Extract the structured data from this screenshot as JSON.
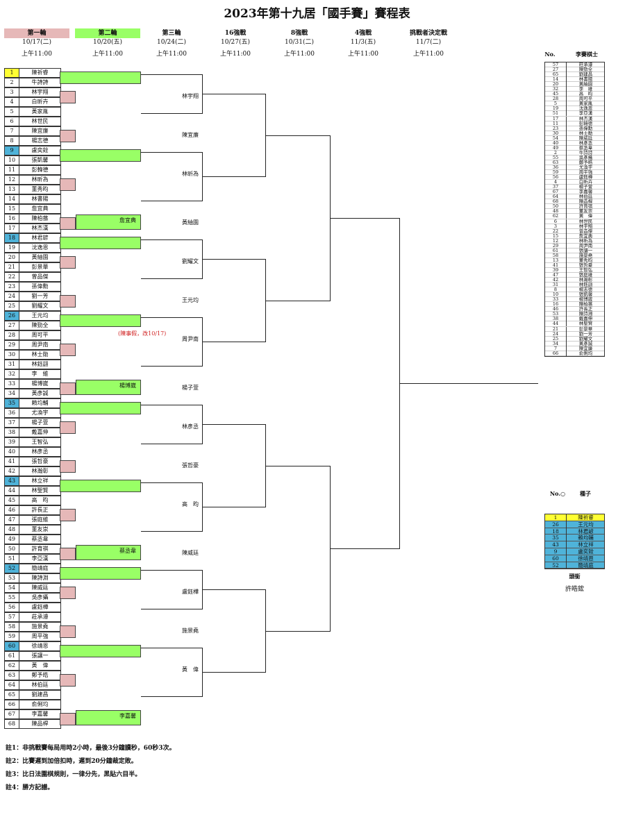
{
  "title": "2023年第十九居「國手賽」賽程表",
  "rounds": [
    {
      "name": "第一輪",
      "date": "10/17(二)",
      "time": "上午11:00",
      "bg": "#e6b8b8"
    },
    {
      "name": "第二輪",
      "date": "10/20(五)",
      "time": "上午11:00",
      "bg": "#99ff66"
    },
    {
      "name": "第三輪",
      "date": "10/24(二)",
      "time": "上午11:00",
      "bg": ""
    },
    {
      "name": "16強戰",
      "date": "10/27(五)",
      "time": "上午11:00",
      "bg": ""
    },
    {
      "name": "8強戰",
      "date": "10/31(二)",
      "time": "上午11:00",
      "bg": ""
    },
    {
      "name": "4強戰",
      "date": "11/3(五)",
      "time": "上午11:00",
      "bg": ""
    },
    {
      "name": "挑戰者決定戰",
      "date": "11/7(二)",
      "time": "上午11:00",
      "bg": ""
    }
  ],
  "players": [
    {
      "no": "1",
      "name": "陳祈睿",
      "seed": "yellow"
    },
    {
      "no": "2",
      "name": "牛詩詩"
    },
    {
      "no": "3",
      "name": "林宇翔"
    },
    {
      "no": "4",
      "name": "白昕卉"
    },
    {
      "no": "5",
      "name": "黃家胤"
    },
    {
      "no": "6",
      "name": "林世民"
    },
    {
      "no": "7",
      "name": "陳宜廉"
    },
    {
      "no": "8",
      "name": "楊志德"
    },
    {
      "no": "9",
      "name": "盧奕銓",
      "seed": "blue"
    },
    {
      "no": "10",
      "name": "張凱馨"
    },
    {
      "no": "11",
      "name": "彭韓德"
    },
    {
      "no": "12",
      "name": "林昕為"
    },
    {
      "no": "13",
      "name": "董秀昀"
    },
    {
      "no": "14",
      "name": "林書陽"
    },
    {
      "no": "15",
      "name": "詹宜典"
    },
    {
      "no": "16",
      "name": "陳柏蓀"
    },
    {
      "no": "17",
      "name": "林杰漢"
    },
    {
      "no": "18",
      "name": "林君諺",
      "seed": "blue"
    },
    {
      "no": "19",
      "name": "沈逸恩"
    },
    {
      "no": "20",
      "name": "黃紬園"
    },
    {
      "no": "21",
      "name": "彭景華"
    },
    {
      "no": "22",
      "name": "曾品傑"
    },
    {
      "no": "23",
      "name": "孫偉勳"
    },
    {
      "no": "24",
      "name": "劉一芳"
    },
    {
      "no": "25",
      "name": "劉耀文"
    },
    {
      "no": "26",
      "name": "王元均",
      "seed": "blue"
    },
    {
      "no": "27",
      "name": "陳勁全"
    },
    {
      "no": "28",
      "name": "周可平"
    },
    {
      "no": "29",
      "name": "周尹南"
    },
    {
      "no": "30",
      "name": "林士勛"
    },
    {
      "no": "31",
      "name": "林鈺翃"
    },
    {
      "no": "32",
      "name": "李　維"
    },
    {
      "no": "33",
      "name": "楊博崴"
    },
    {
      "no": "34",
      "name": "黃彥誠"
    },
    {
      "no": "35",
      "name": "賴均輔",
      "seed": "blue"
    },
    {
      "no": "36",
      "name": "尤渙宇"
    },
    {
      "no": "37",
      "name": "楊子萱"
    },
    {
      "no": "38",
      "name": "戴嘉伸"
    },
    {
      "no": "39",
      "name": "王智弘"
    },
    {
      "no": "40",
      "name": "林彥丞"
    },
    {
      "no": "41",
      "name": "張哲豪"
    },
    {
      "no": "42",
      "name": "林瀚彰"
    },
    {
      "no": "43",
      "name": "林立祥",
      "seed": "blue"
    },
    {
      "no": "44",
      "name": "林聖賢"
    },
    {
      "no": "45",
      "name": "高　昀"
    },
    {
      "no": "46",
      "name": "許長正"
    },
    {
      "no": "47",
      "name": "張庭維"
    },
    {
      "no": "48",
      "name": "董友崇"
    },
    {
      "no": "49",
      "name": "蔡丞韋"
    },
    {
      "no": "50",
      "name": "許育祺"
    },
    {
      "no": "51",
      "name": "李亞漢"
    },
    {
      "no": "52",
      "name": "簡靖庭",
      "seed": "blue"
    },
    {
      "no": "53",
      "name": "陳詩淵"
    },
    {
      "no": "54",
      "name": "陳威廷"
    },
    {
      "no": "55",
      "name": "吳彥攝"
    },
    {
      "no": "56",
      "name": "盧鈺樺"
    },
    {
      "no": "57",
      "name": "莊承濬"
    },
    {
      "no": "58",
      "name": "施景堯"
    },
    {
      "no": "59",
      "name": "周平強"
    },
    {
      "no": "60",
      "name": "徐靖恩",
      "seed": "blue"
    },
    {
      "no": "61",
      "name": "張讓一"
    },
    {
      "no": "62",
      "name": "黃　偉"
    },
    {
      "no": "63",
      "name": "鄭予皓"
    },
    {
      "no": "64",
      "name": "林伯廷"
    },
    {
      "no": "65",
      "name": "劉建昌"
    },
    {
      "no": "66",
      "name": "俞俐均"
    },
    {
      "no": "67",
      "name": "李嘉馨"
    },
    {
      "no": "68",
      "name": "陳品桿"
    }
  ],
  "round2_winners": [
    {
      "slot": "r2-15",
      "name": "詹宜典"
    },
    {
      "slot": "r2-33",
      "name": "楊博崴"
    },
    {
      "slot": "r2-49",
      "name": "蔡丞韋"
    },
    {
      "slot": "r2-67",
      "name": "李嘉馨"
    }
  ],
  "round3_winners": [
    {
      "name": "林宇翔"
    },
    {
      "name": "陳宜廉"
    },
    {
      "name": "林昕為"
    },
    {
      "name": "黃紬園"
    },
    {
      "name": "劉耀文"
    },
    {
      "name": "王元均"
    },
    {
      "name": "周尹南"
    },
    {
      "name": "楊子萱"
    },
    {
      "name": "林彥丞"
    },
    {
      "name": "張哲豪"
    },
    {
      "name": "高　昀"
    },
    {
      "name": "陳威廷"
    },
    {
      "name": "盧鈺樺"
    },
    {
      "name": "施景堯"
    },
    {
      "name": "黃　偉"
    }
  ],
  "red_note": "(陳事假，改10/17)",
  "referee_table": {
    "header_no": "No.",
    "header_name": "李賽棋士",
    "rows": [
      [
        "57",
        "莊承濬"
      ],
      [
        "27",
        "陳勁全"
      ],
      [
        "65",
        "劉建昌"
      ],
      [
        "14",
        "林書陽"
      ],
      [
        "20",
        "黃紬園"
      ],
      [
        "32",
        "李　維"
      ],
      [
        "45",
        "高　昀"
      ],
      [
        "28",
        "周可平"
      ],
      [
        "5",
        "黃家胤"
      ],
      [
        "19",
        "沈逸恩"
      ],
      [
        "51",
        "李亞漢"
      ],
      [
        "17",
        "林杰漢"
      ],
      [
        "11",
        "彭韓德"
      ],
      [
        "23",
        "孫偉勳"
      ],
      [
        "30",
        "林士勛"
      ],
      [
        "54",
        "陳威廷"
      ],
      [
        "40",
        "林彥丞"
      ],
      [
        "49",
        "蔡丞韋"
      ],
      [
        "2",
        "牛詩詩"
      ],
      [
        "55",
        "吳彥攝"
      ],
      [
        "63",
        "鄭予皓"
      ],
      [
        "36",
        "尤渙宇"
      ],
      [
        "59",
        "周平強"
      ],
      [
        "56",
        "盧鈺樺"
      ],
      [
        "4",
        "白昕卉"
      ],
      [
        "37",
        "楊子萱"
      ],
      [
        "67",
        "李嘉馨"
      ],
      [
        "64",
        "林伯廷"
      ],
      [
        "68",
        "陳品桿"
      ],
      [
        "50",
        "許育祺"
      ],
      [
        "48",
        "董友崇"
      ],
      [
        "62",
        "黃　偉"
      ],
      [
        "6",
        "林世民"
      ],
      [
        "3",
        "林宇翔"
      ],
      [
        "22",
        "曾品傑"
      ],
      [
        "15",
        "詹宜典"
      ],
      [
        "12",
        "林昕為"
      ],
      [
        "29",
        "周尹南"
      ],
      [
        "61",
        "張讓一"
      ],
      [
        "58",
        "施景堯"
      ],
      [
        "13",
        "董秀昀"
      ],
      [
        "41",
        "張哲豪"
      ],
      [
        "39",
        "王智弘"
      ],
      [
        "47",
        "張庭維"
      ],
      [
        "42",
        "林瀚彰"
      ],
      [
        "31",
        "林鈺翃"
      ],
      [
        "8",
        "楊志德"
      ],
      [
        "10",
        "張凱馨"
      ],
      [
        "33",
        "楊博崴"
      ],
      [
        "16",
        "陳柏蓀"
      ],
      [
        "46",
        "許長正"
      ],
      [
        "53",
        "陳詩淵"
      ],
      [
        "38",
        "戴嘉伸"
      ],
      [
        "44",
        "林聖賢"
      ],
      [
        "21",
        "彭景華"
      ],
      [
        "24",
        "劉一芳"
      ],
      [
        "25",
        "劉耀文"
      ],
      [
        "34",
        "黃彥誠"
      ],
      [
        "7",
        "陳宜廉"
      ],
      [
        "66",
        "俞俐均"
      ]
    ]
  },
  "seed_table": {
    "header_no": "No.○",
    "header_name": "種子",
    "rows": [
      [
        "1",
        "陳祈睿",
        "#ffff33"
      ],
      [
        "26",
        "王元均",
        "#4fb3d9"
      ],
      [
        "18",
        "林君諺",
        "#4fb3d9"
      ],
      [
        "35",
        "賴均輔",
        "#4fb3d9"
      ],
      [
        "43",
        "林立祥",
        "#4fb3d9"
      ],
      [
        "9",
        "盧奕銓",
        "#4fb3d9"
      ],
      [
        "60",
        "徐靖恩",
        "#4fb3d9"
      ],
      [
        "52",
        "簡靖庭",
        "#4fb3d9"
      ]
    ],
    "caption": "頭銜",
    "holder": "許皓鋐"
  },
  "notes": [
    "註1：非挑戰賽每局用時2小時，最後3分鐘讀秒，60秒3次。",
    "註2：比賽遲到加倍扣時，遲到20分鐘裁定敗。",
    "註3：比日法圍棋規則，一律分先，黑貼六目半。",
    "註4：勝方記譜。"
  ],
  "colors": {
    "seed_yellow": "#ffff33",
    "seed_blue": "#4fb3d9",
    "round1": "#e6b8b8",
    "round2": "#99ff66",
    "note_red": "#d02020"
  }
}
